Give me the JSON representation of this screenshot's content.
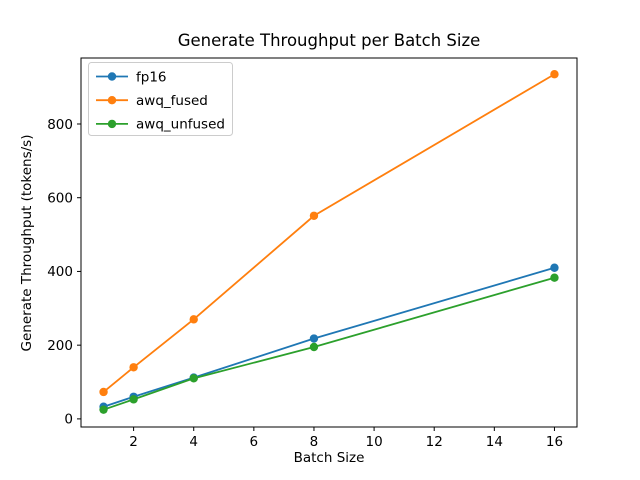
{
  "chart_data": {
    "type": "line",
    "title": "Generate Throughput per Batch Size",
    "xlabel": "Batch Size",
    "ylabel": "Generate Throughput (tokens/s)",
    "x": [
      1,
      2,
      4,
      8,
      16
    ],
    "series": [
      {
        "name": "fp16",
        "color": "#1f77b4",
        "values": [
          33,
          60,
          112,
          218,
          410
        ]
      },
      {
        "name": "awq_fused",
        "color": "#ff7f0e",
        "values": [
          73,
          140,
          270,
          551,
          935
        ]
      },
      {
        "name": "awq_unfused",
        "color": "#2ca02c",
        "values": [
          25,
          53,
          110,
          195,
          383
        ]
      }
    ],
    "xlim": [
      0.25,
      16.75
    ],
    "ylim": [
      -22,
      979
    ],
    "xticks": [
      2,
      4,
      6,
      8,
      10,
      12,
      14,
      16
    ],
    "yticks": [
      0,
      200,
      400,
      600,
      800
    ],
    "grid": false,
    "marker": "circle",
    "legend": {
      "position": "upper left",
      "border_color": "#cccccc",
      "background": "#ffffff"
    },
    "background": "#ffffff",
    "spine_color": "#000000"
  }
}
